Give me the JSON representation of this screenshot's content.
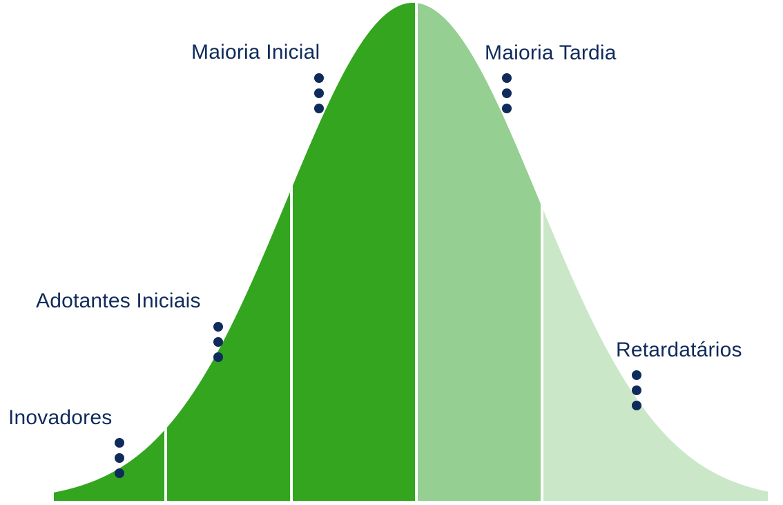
{
  "diagram": {
    "type": "bell-curve",
    "title": "",
    "colors": {
      "innovators": "#33a51f",
      "early_adopters": "#33a51f",
      "early_majority": "#33a51f",
      "late_majority": "#95cf91",
      "laggards": "#cae8c8",
      "divider": "#ffffff",
      "label_text": "#0f2b5b",
      "dot": "#0f2b5b"
    },
    "segments": [
      {
        "key": "innovators",
        "label": "Inovadores"
      },
      {
        "key": "early_adopters",
        "label": "Adotantes Iniciais"
      },
      {
        "key": "early_majority",
        "label": "Maioria Inicial"
      },
      {
        "key": "late_majority",
        "label": "Maioria Tardia"
      },
      {
        "key": "laggards",
        "label": "Retardatários"
      }
    ]
  }
}
